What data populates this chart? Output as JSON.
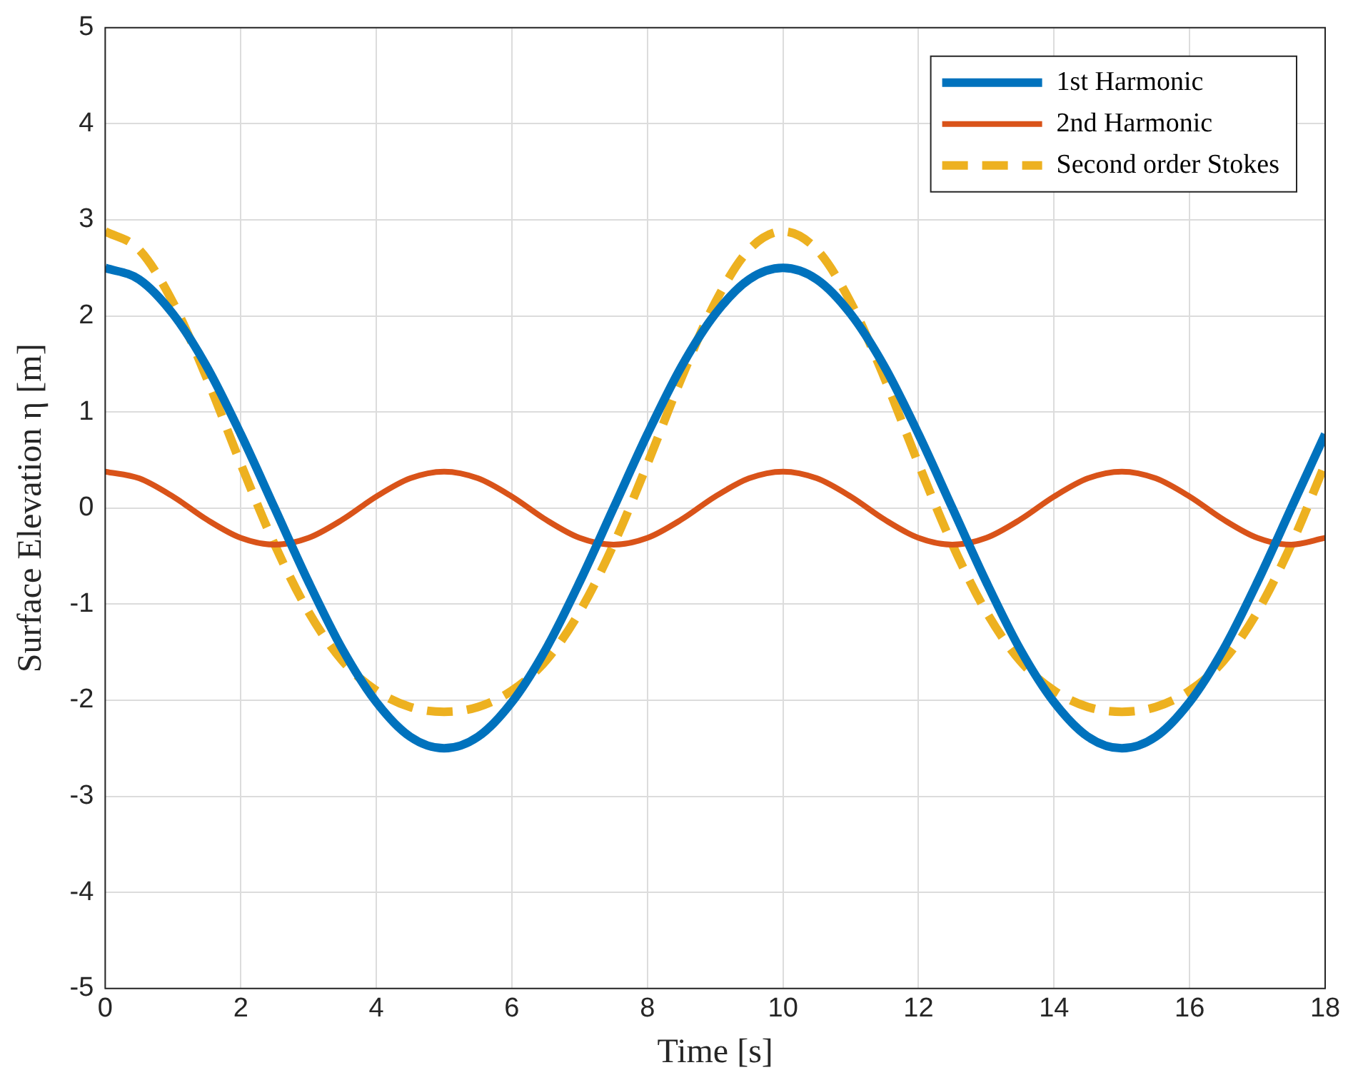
{
  "chart_data": {
    "type": "line",
    "xlabel": "Time [s]",
    "ylabel": "Surface Elevation η [m]",
    "x": [
      0,
      0.5,
      1,
      1.5,
      2,
      2.5,
      3,
      3.5,
      4,
      4.5,
      5,
      5.5,
      6,
      6.5,
      7,
      7.5,
      8,
      8.5,
      9,
      9.5,
      10,
      10.5,
      11,
      11.5,
      12,
      12.5,
      13,
      13.5,
      14,
      14.5,
      15,
      15.5,
      16,
      16.5,
      17,
      17.5,
      18
    ],
    "series": [
      {
        "name": "1st Harmonic",
        "color": "#0072bd",
        "line_style": "solid",
        "values": [
          2.5,
          2.38,
          2.02,
          1.47,
          0.77,
          0,
          -0.77,
          -1.47,
          -2.02,
          -2.38,
          -2.5,
          -2.38,
          -2.02,
          -1.47,
          -0.77,
          0,
          0.77,
          1.47,
          2.02,
          2.38,
          2.5,
          2.38,
          2.02,
          1.47,
          0.77,
          0,
          -0.77,
          -1.47,
          -2.02,
          -2.38,
          -2.5,
          -2.38,
          -2.02,
          -1.47,
          -0.77,
          0,
          0.77
        ]
      },
      {
        "name": "2nd Harmonic",
        "color": "#d95319",
        "line_style": "solid",
        "values": [
          0.38,
          0.31,
          0.12,
          -0.12,
          -0.31,
          -0.38,
          -0.31,
          -0.12,
          0.12,
          0.31,
          0.38,
          0.31,
          0.12,
          -0.12,
          -0.31,
          -0.38,
          -0.31,
          -0.12,
          0.12,
          0.31,
          0.38,
          0.31,
          0.12,
          -0.12,
          -0.31,
          -0.38,
          -0.31,
          -0.12,
          0.12,
          0.31,
          0.38,
          0.31,
          0.12,
          -0.12,
          -0.31,
          -0.38,
          -0.31
        ]
      },
      {
        "name": "Second order Stokes",
        "color": "#edb120",
        "line_style": "dashed",
        "values": [
          2.88,
          2.69,
          2.14,
          1.35,
          0.46,
          -0.38,
          -1.08,
          -1.59,
          -1.9,
          -2.07,
          -2.12,
          -2.07,
          -1.9,
          -1.59,
          -1.08,
          -0.38,
          0.46,
          1.35,
          2.14,
          2.69,
          2.88,
          2.69,
          2.14,
          1.35,
          0.46,
          -0.38,
          -1.08,
          -1.59,
          -1.9,
          -2.07,
          -2.12,
          -2.07,
          -1.9,
          -1.59,
          -1.08,
          -0.38,
          0.46
        ]
      }
    ],
    "xlim": [
      0,
      18
    ],
    "xticks": [
      0,
      2,
      4,
      6,
      8,
      10,
      12,
      14,
      16,
      18
    ],
    "ylim": [
      -5,
      5
    ],
    "yticks": [
      -5,
      -4,
      -3,
      -2,
      -1,
      0,
      1,
      2,
      3,
      4,
      5
    ],
    "grid": true,
    "legend": "top right",
    "marker": "none"
  }
}
